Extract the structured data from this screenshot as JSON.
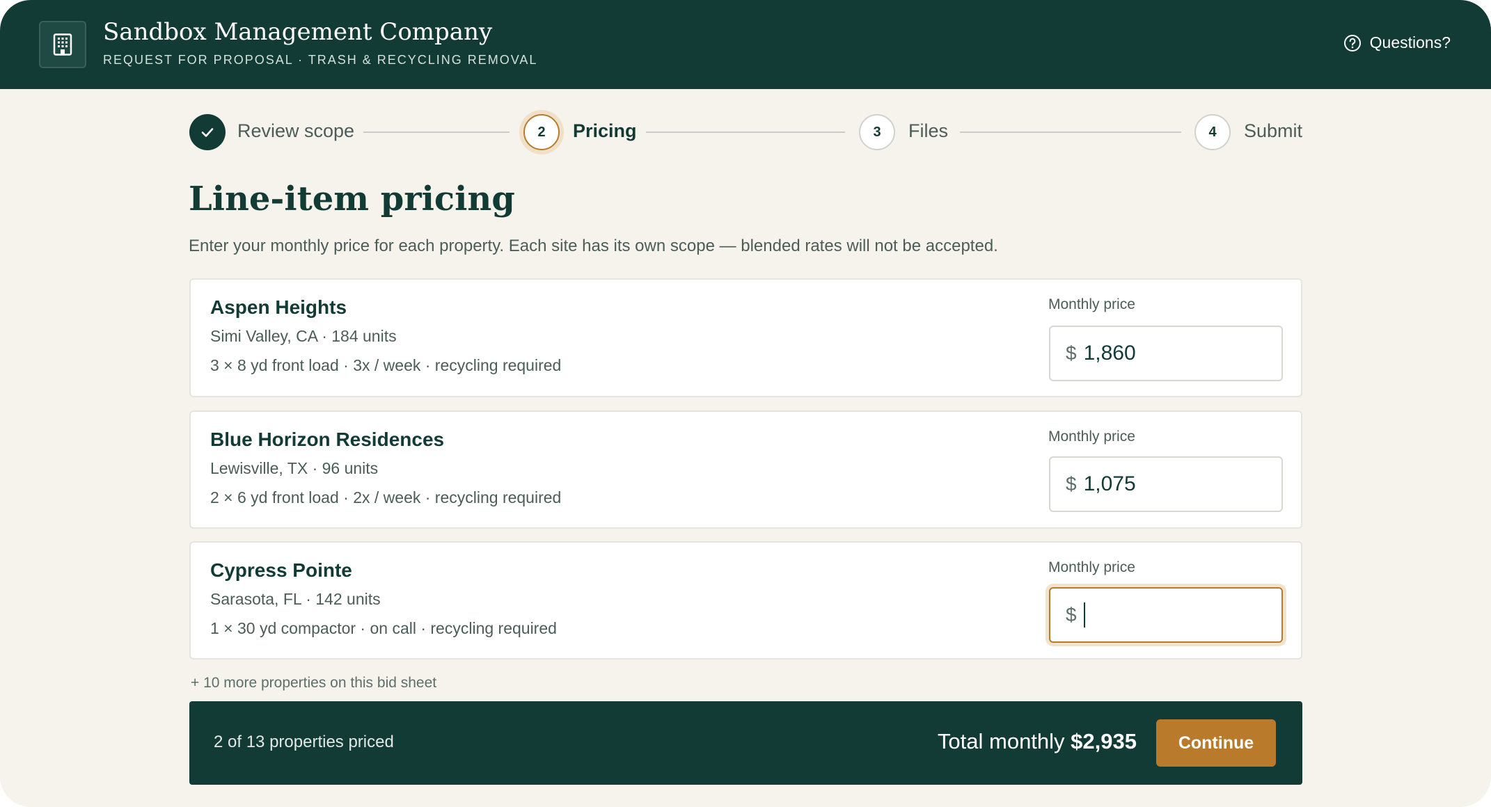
{
  "header": {
    "company": "Sandbox Management Company",
    "subtitle": "REQUEST FOR PROPOSAL · TRASH & RECYCLING REMOVAL",
    "help_label": "Questions?"
  },
  "stepper": {
    "steps": [
      {
        "number": "1",
        "label": "Review scope",
        "state": "completed"
      },
      {
        "number": "2",
        "label": "Pricing",
        "state": "active"
      },
      {
        "number": "3",
        "label": "Files",
        "state": "upcoming"
      },
      {
        "number": "4",
        "label": "Submit",
        "state": "upcoming"
      }
    ]
  },
  "main": {
    "title": "Line-item pricing",
    "description": "Enter your monthly price for each property. Each site has its own scope — blended rates will not be accepted.",
    "properties": [
      {
        "name": "Aspen Heights",
        "location": "Simi Valley, CA · 184 units",
        "scope": "3 × 8 yd front load · 3x / week · recycling required",
        "price_label": "Monthly price",
        "currency": "$",
        "value": "1,860"
      },
      {
        "name": "Blue Horizon Residences",
        "location": "Lewisville, TX · 96 units",
        "scope": "2 × 6 yd front load · 2x / week · recycling required",
        "price_label": "Monthly price",
        "currency": "$",
        "value": "1,075"
      },
      {
        "name": "Cypress Pointe",
        "location": "Sarasota, FL · 142 units",
        "scope": "1 × 30 yd compactor · on call · recycling required",
        "price_label": "Monthly price",
        "currency": "$",
        "value": ""
      }
    ],
    "more_note": "+ 10 more properties on this bid sheet"
  },
  "footer": {
    "progress": "2 of 13 properties priced",
    "total_prefix": "Total monthly",
    "total_value": "$2,935",
    "continue_label": "Continue"
  },
  "colors": {
    "primary": "#133b35",
    "accent": "#b97a2c",
    "background": "#f6f3ed"
  }
}
